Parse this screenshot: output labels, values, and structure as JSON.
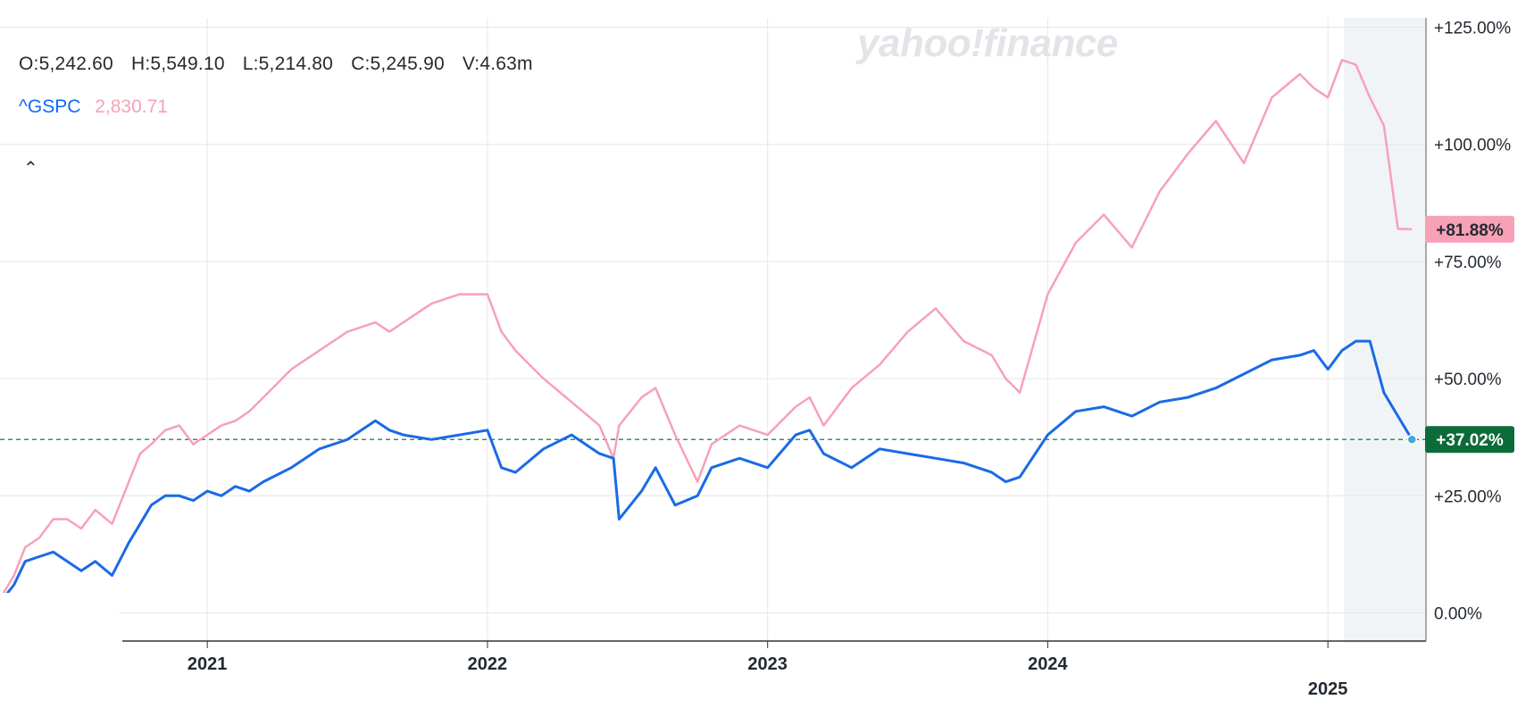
{
  "brand": {
    "logo_text": "yahoo!finance"
  },
  "ohlc": {
    "open": "O:5,242.60",
    "high": "H:5,549.10",
    "low": "L:5,214.80",
    "close": "C:5,245.90",
    "volume": "V:4.63m"
  },
  "legend": {
    "symbol": "^GSPC",
    "compare_value": "2,830.71",
    "collapse_icon": "chevron-up-icon"
  },
  "colors": {
    "gspc": "#1a6ae6",
    "comparison": "#f7a1b7",
    "last_badge_gspc": "#0b6b3a",
    "last_badge_comparison": "#f7a1b7",
    "grid": "#e6e6e6",
    "shade": "#f1f4f7"
  },
  "chart_data": {
    "type": "line",
    "ylabel": "",
    "xlabel": "",
    "ylim": [
      -6,
      127
    ],
    "y_ticks": [
      "+125.00%",
      "+100.00%",
      "+75.00%",
      "+50.00%",
      "+25.00%",
      "0.00%"
    ],
    "y_tick_values": [
      125,
      100,
      75,
      50,
      25,
      0
    ],
    "x_ticks": [
      "2021",
      "2022",
      "2023",
      "2024",
      "2025"
    ],
    "x_tick_values": [
      2021.0,
      2022.0,
      2023.0,
      2024.0,
      2025.0
    ],
    "xlim": [
      2020.26,
      2025.35
    ],
    "baseline": 37.02,
    "series": [
      {
        "name": "^GSPC",
        "last_label": "+37.02%",
        "x": [
          2020.27,
          2020.31,
          2020.35,
          2020.4,
          2020.45,
          2020.5,
          2020.55,
          2020.6,
          2020.66,
          2020.72,
          2020.76,
          2020.8,
          2020.85,
          2020.9,
          2020.95,
          2021.0,
          2021.05,
          2021.1,
          2021.15,
          2021.2,
          2021.3,
          2021.4,
          2021.5,
          2021.6,
          2021.65,
          2021.7,
          2021.8,
          2021.9,
          2022.0,
          2022.05,
          2022.1,
          2022.2,
          2022.3,
          2022.4,
          2022.45,
          2022.47,
          2022.55,
          2022.6,
          2022.67,
          2022.75,
          2022.8,
          2022.9,
          2023.0,
          2023.1,
          2023.15,
          2023.2,
          2023.3,
          2023.4,
          2023.5,
          2023.6,
          2023.7,
          2023.8,
          2023.85,
          2023.9,
          2024.0,
          2024.1,
          2024.2,
          2024.3,
          2024.4,
          2024.5,
          2024.6,
          2024.7,
          2024.8,
          2024.9,
          2024.95,
          2025.0,
          2025.05,
          2025.1,
          2025.15,
          2025.2,
          2025.25,
          2025.3
        ],
        "values": [
          3,
          6,
          11,
          12,
          13,
          11,
          9,
          11,
          8,
          15,
          19,
          23,
          25,
          25,
          24,
          26,
          25,
          27,
          26,
          28,
          31,
          35,
          37,
          41,
          39,
          38,
          37,
          38,
          39,
          31,
          30,
          35,
          38,
          34,
          33,
          20,
          26,
          31,
          23,
          25,
          31,
          33,
          31,
          38,
          39,
          34,
          31,
          35,
          34,
          33,
          32,
          30,
          28,
          29,
          38,
          43,
          44,
          42,
          45,
          46,
          48,
          51,
          54,
          55,
          56,
          52,
          56,
          58,
          58,
          47,
          42,
          37.02
        ]
      },
      {
        "name": "",
        "last_label": "+81.88%",
        "x": [
          2020.27,
          2020.31,
          2020.35,
          2020.4,
          2020.45,
          2020.5,
          2020.55,
          2020.6,
          2020.66,
          2020.72,
          2020.76,
          2020.8,
          2020.85,
          2020.9,
          2020.95,
          2021.0,
          2021.05,
          2021.1,
          2021.15,
          2021.2,
          2021.3,
          2021.4,
          2021.5,
          2021.6,
          2021.65,
          2021.7,
          2021.8,
          2021.9,
          2022.0,
          2022.05,
          2022.1,
          2022.2,
          2022.3,
          2022.4,
          2022.45,
          2022.47,
          2022.55,
          2022.6,
          2022.67,
          2022.75,
          2022.8,
          2022.9,
          2023.0,
          2023.1,
          2023.15,
          2023.2,
          2023.3,
          2023.4,
          2023.5,
          2023.6,
          2023.7,
          2023.8,
          2023.85,
          2023.9,
          2024.0,
          2024.1,
          2024.2,
          2024.3,
          2024.4,
          2024.5,
          2024.6,
          2024.7,
          2024.8,
          2024.9,
          2024.95,
          2025.0,
          2025.05,
          2025.1,
          2025.15,
          2025.2,
          2025.25,
          2025.3
        ],
        "values": [
          4,
          8,
          14,
          16,
          20,
          20,
          18,
          22,
          19,
          28,
          34,
          36,
          39,
          40,
          36,
          38,
          40,
          41,
          43,
          46,
          52,
          56,
          60,
          62,
          60,
          62,
          66,
          68,
          68,
          60,
          56,
          50,
          45,
          40,
          33,
          40,
          46,
          48,
          38,
          28,
          36,
          40,
          38,
          44,
          46,
          40,
          48,
          53,
          60,
          65,
          58,
          55,
          50,
          47,
          68,
          79,
          85,
          78,
          90,
          98,
          105,
          96,
          110,
          115,
          112,
          110,
          118,
          117,
          110,
          104,
          82,
          81.88
        ]
      }
    ]
  }
}
